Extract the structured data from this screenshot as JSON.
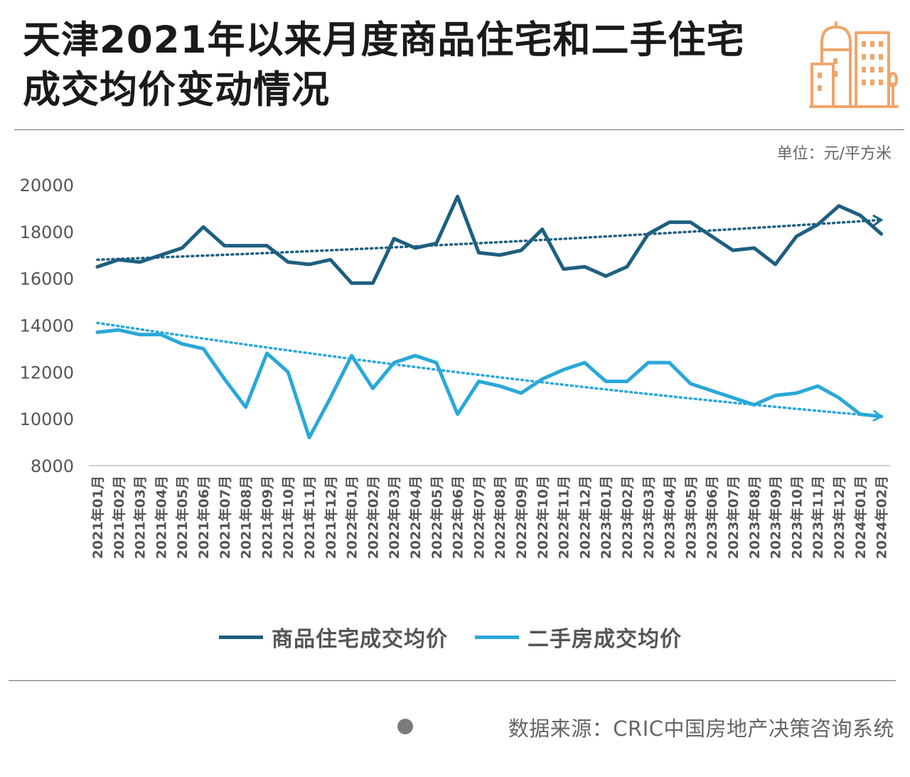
{
  "title": "天津2021年以来月度商品住宅和二手住宅成交均价变动情况",
  "unit": "单位：元/平方米",
  "source": "数据来源：CRIC中国房地产决策咨询系统",
  "colors": {
    "new_home": "#1e5f80",
    "second_hand": "#2aa8d8",
    "icon": "#f0a56a",
    "axis_text": "#555555"
  },
  "icons": {
    "header": "city-buildings-icon",
    "source_bullet": "dot-icon"
  },
  "chart_data": {
    "type": "line",
    "title": "天津2021年以来月度商品住宅和二手住宅成交均价变动情况",
    "ylabel": "单位：元/平方米",
    "ylim": [
      8000,
      20000
    ],
    "yticks": [
      8000,
      10000,
      12000,
      14000,
      16000,
      18000,
      20000
    ],
    "grid": false,
    "legend_position": "bottom",
    "categories": [
      "2021年01月",
      "2021年02月",
      "2021年03月",
      "2021年04月",
      "2021年05月",
      "2021年06月",
      "2021年07月",
      "2021年08月",
      "2021年09月",
      "2021年10月",
      "2021年11月",
      "2021年12月",
      "2022年01月",
      "2022年02月",
      "2022年03月",
      "2022年04月",
      "2022年05月",
      "2022年06月",
      "2022年07月",
      "2022年08月",
      "2022年09月",
      "2022年10月",
      "2022年11月",
      "2022年12月",
      "2023年01月",
      "2023年02月",
      "2023年03月",
      "2023年04月",
      "2023年05月",
      "2023年06月",
      "2023年07月",
      "2023年08月",
      "2023年09月",
      "2023年10月",
      "2023年11月",
      "2023年12月",
      "2024年01月",
      "2024年02月"
    ],
    "series": [
      {
        "name": "商品住宅成交均价",
        "values": [
          16500,
          16800,
          16700,
          17000,
          17300,
          18200,
          17400,
          17400,
          17400,
          16700,
          16600,
          16800,
          15800,
          15800,
          17700,
          17300,
          17500,
          19500,
          17100,
          17000,
          17200,
          18100,
          16400,
          16500,
          16100,
          16500,
          17900,
          18400,
          18400,
          17800,
          17200,
          17300,
          16600,
          17800,
          18300,
          19100,
          18700,
          17900
        ],
        "trendline": {
          "style": "dotted",
          "start": 16800,
          "end": 18500
        }
      },
      {
        "name": "二手房成交均价",
        "values": [
          13700,
          13800,
          13600,
          13600,
          13200,
          13000,
          11700,
          10500,
          12800,
          12000,
          9200,
          10900,
          12700,
          11300,
          12400,
          12700,
          12400,
          10200,
          11600,
          11400,
          11100,
          11700,
          12100,
          12400,
          11600,
          11600,
          12400,
          12400,
          11500,
          11200,
          10900,
          10600,
          11000,
          11100,
          11400,
          10900,
          10200,
          10100
        ],
        "trendline": {
          "style": "dotted",
          "start": 14100,
          "end": 10100
        }
      }
    ]
  }
}
